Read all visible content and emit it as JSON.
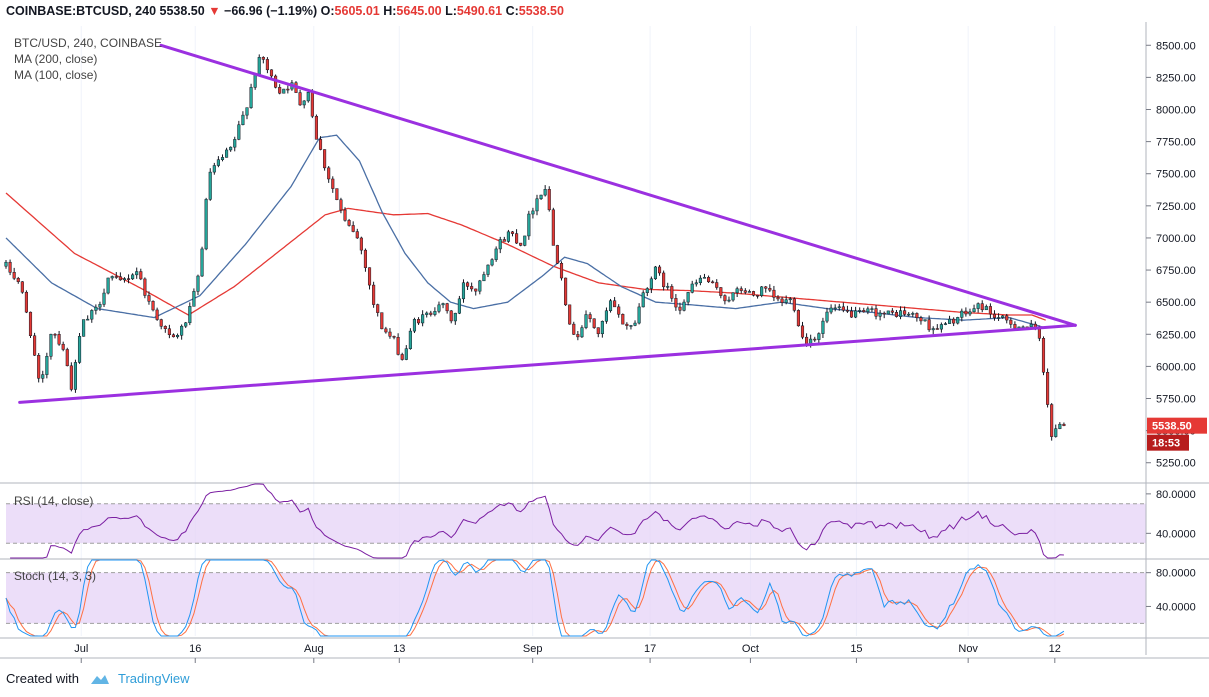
{
  "header": {
    "symbol": "COINBASE:BTCUSD, 240",
    "last": "5538.50",
    "arrow": "▼",
    "change": "−66.96 (−1.19%)",
    "o_label": "O:",
    "o": "5605.01",
    "h_label": "H:",
    "h": "5645.00",
    "l_label": "L:",
    "l": "5490.61",
    "c_label": "C:",
    "c": "5538.50"
  },
  "legend": {
    "main": "BTC/USD, 240, COINBASE",
    "ma200": "MA (200, close)",
    "ma100": "MA (100, close)",
    "rsi": "RSI (14, close)",
    "stoch": "Stoch (14, 3, 3)"
  },
  "price_tag": {
    "value": "5538.50",
    "timer": "18:53"
  },
  "footer": {
    "created": "Created with",
    "brand": "TradingView"
  },
  "colors": {
    "bull": "#26a69a",
    "bear": "#e53935",
    "candle": "#131722",
    "ma200": "#e53935",
    "ma100": "#4a6fa5",
    "trend": "#9b30e0",
    "osc": "#7b1fa2",
    "band": "#e6d3f7",
    "stoch_k": "#2196f3",
    "stoch_d": "#ff7043"
  },
  "chart_data": [
    {
      "type": "candlestick",
      "title": "BTC/USD, 240, COINBASE",
      "ylim": [
        5100,
        8650
      ],
      "yticks": [
        "8500.00",
        "8250.00",
        "8000.00",
        "7750.00",
        "7500.00",
        "7250.00",
        "7000.00",
        "6750.00",
        "6500.00",
        "6250.00",
        "6000.00",
        "5750.00",
        "5500.00",
        "5250.00"
      ],
      "ytick_values": [
        8500,
        8250,
        8000,
        7750,
        7500,
        7250,
        7000,
        6750,
        6500,
        6250,
        6000,
        5750,
        5500,
        5250
      ],
      "x_labels": [
        {
          "label": "Jul",
          "t": 0.066
        },
        {
          "label": "16",
          "t": 0.166
        },
        {
          "label": "Aug",
          "t": 0.27
        },
        {
          "label": "13",
          "t": 0.345
        },
        {
          "label": "Sep",
          "t": 0.462
        },
        {
          "label": "17",
          "t": 0.565
        },
        {
          "label": "Oct",
          "t": 0.653
        },
        {
          "label": "15",
          "t": 0.746
        },
        {
          "label": "Nov",
          "t": 0.844
        },
        {
          "label": "12",
          "t": 0.92
        }
      ],
      "price_anchors": [
        [
          0.0,
          6780
        ],
        [
          0.012,
          6650
        ],
        [
          0.022,
          6250
        ],
        [
          0.03,
          5800
        ],
        [
          0.04,
          6300
        ],
        [
          0.05,
          6150
        ],
        [
          0.058,
          5820
        ],
        [
          0.066,
          6320
        ],
        [
          0.08,
          6450
        ],
        [
          0.09,
          6700
        ],
        [
          0.1,
          6650
        ],
        [
          0.115,
          6750
        ],
        [
          0.125,
          6500
        ],
        [
          0.135,
          6350
        ],
        [
          0.145,
          6200
        ],
        [
          0.155,
          6300
        ],
        [
          0.162,
          6450
        ],
        [
          0.17,
          6750
        ],
        [
          0.178,
          7500
        ],
        [
          0.188,
          7600
        ],
        [
          0.198,
          7700
        ],
        [
          0.21,
          8000
        ],
        [
          0.22,
          8350
        ],
        [
          0.225,
          8400
        ],
        [
          0.232,
          8250
        ],
        [
          0.24,
          8150
        ],
        [
          0.25,
          8200
        ],
        [
          0.258,
          8050
        ],
        [
          0.265,
          8150
        ],
        [
          0.272,
          7800
        ],
        [
          0.28,
          7550
        ],
        [
          0.29,
          7300
        ],
        [
          0.298,
          7100
        ],
        [
          0.306,
          7050
        ],
        [
          0.314,
          6850
        ],
        [
          0.322,
          6500
        ],
        [
          0.33,
          6300
        ],
        [
          0.34,
          6200
        ],
        [
          0.348,
          6050
        ],
        [
          0.358,
          6350
        ],
        [
          0.37,
          6400
        ],
        [
          0.38,
          6500
        ],
        [
          0.392,
          6350
        ],
        [
          0.402,
          6650
        ],
        [
          0.412,
          6600
        ],
        [
          0.422,
          6800
        ],
        [
          0.432,
          6950
        ],
        [
          0.442,
          7050
        ],
        [
          0.452,
          6950
        ],
        [
          0.46,
          7200
        ],
        [
          0.468,
          7350
        ],
        [
          0.474,
          7400
        ],
        [
          0.48,
          6950
        ],
        [
          0.488,
          6700
        ],
        [
          0.494,
          6300
        ],
        [
          0.502,
          6250
        ],
        [
          0.51,
          6400
        ],
        [
          0.52,
          6250
        ],
        [
          0.53,
          6500
        ],
        [
          0.54,
          6350
        ],
        [
          0.55,
          6300
        ],
        [
          0.56,
          6600
        ],
        [
          0.57,
          6750
        ],
        [
          0.58,
          6600
        ],
        [
          0.59,
          6450
        ],
        [
          0.6,
          6600
        ],
        [
          0.612,
          6700
        ],
        [
          0.622,
          6600
        ],
        [
          0.632,
          6520
        ],
        [
          0.645,
          6600
        ],
        [
          0.655,
          6550
        ],
        [
          0.665,
          6600
        ],
        [
          0.678,
          6500
        ],
        [
          0.69,
          6520
        ],
        [
          0.7,
          6180
        ],
        [
          0.712,
          6250
        ],
        [
          0.722,
          6450
        ],
        [
          0.735,
          6420
        ],
        [
          0.748,
          6400
        ],
        [
          0.76,
          6430
        ],
        [
          0.772,
          6400
        ],
        [
          0.785,
          6420
        ],
        [
          0.8,
          6380
        ],
        [
          0.812,
          6300
        ],
        [
          0.822,
          6310
        ],
        [
          0.832,
          6370
        ],
        [
          0.844,
          6420
        ],
        [
          0.855,
          6480
        ],
        [
          0.866,
          6400
        ],
        [
          0.876,
          6350
        ],
        [
          0.888,
          6320
        ],
        [
          0.9,
          6300
        ],
        [
          0.906,
          6250
        ],
        [
          0.912,
          5850
        ],
        [
          0.918,
          5400
        ],
        [
          0.924,
          5580
        ],
        [
          0.928,
          5538
        ]
      ],
      "trendlines": [
        {
          "name": "upper",
          "from": [
            0.136,
            8500
          ],
          "to": [
            0.938,
            6320
          ]
        },
        {
          "name": "lower",
          "from": [
            0.012,
            5720
          ],
          "to": [
            0.938,
            6320
          ]
        }
      ],
      "ma200_anchors": [
        [
          0.0,
          7350
        ],
        [
          0.06,
          6880
        ],
        [
          0.12,
          6600
        ],
        [
          0.16,
          6400
        ],
        [
          0.2,
          6620
        ],
        [
          0.24,
          6900
        ],
        [
          0.28,
          7180
        ],
        [
          0.3,
          7230
        ],
        [
          0.34,
          7180
        ],
        [
          0.37,
          7190
        ],
        [
          0.4,
          7100
        ],
        [
          0.44,
          6950
        ],
        [
          0.48,
          6780
        ],
        [
          0.52,
          6650
        ],
        [
          0.56,
          6600
        ],
        [
          0.6,
          6590
        ],
        [
          0.64,
          6570
        ],
        [
          0.68,
          6540
        ],
        [
          0.72,
          6510
        ],
        [
          0.76,
          6480
        ],
        [
          0.8,
          6450
        ],
        [
          0.84,
          6420
        ],
        [
          0.88,
          6400
        ],
        [
          0.9,
          6400
        ],
        [
          0.912,
          6360
        ]
      ],
      "ma100_anchors": [
        [
          0.0,
          7000
        ],
        [
          0.04,
          6650
        ],
        [
          0.08,
          6450
        ],
        [
          0.13,
          6380
        ],
        [
          0.17,
          6550
        ],
        [
          0.21,
          6950
        ],
        [
          0.25,
          7400
        ],
        [
          0.275,
          7780
        ],
        [
          0.29,
          7800
        ],
        [
          0.31,
          7600
        ],
        [
          0.33,
          7200
        ],
        [
          0.35,
          6880
        ],
        [
          0.37,
          6650
        ],
        [
          0.39,
          6500
        ],
        [
          0.41,
          6450
        ],
        [
          0.44,
          6500
        ],
        [
          0.47,
          6700
        ],
        [
          0.49,
          6850
        ],
        [
          0.51,
          6800
        ],
        [
          0.54,
          6620
        ],
        [
          0.57,
          6500
        ],
        [
          0.6,
          6480
        ],
        [
          0.64,
          6450
        ],
        [
          0.68,
          6500
        ],
        [
          0.72,
          6450
        ],
        [
          0.76,
          6420
        ],
        [
          0.8,
          6380
        ],
        [
          0.84,
          6360
        ],
        [
          0.88,
          6380
        ],
        [
          0.912,
          6300
        ]
      ],
      "last_price": 5538.5
    },
    {
      "type": "line",
      "title": "RSI (14, close)",
      "ylim": [
        15,
        90
      ],
      "yticks": [
        "80.0000",
        "40.0000"
      ],
      "ytick_values": [
        80,
        40
      ],
      "band": [
        30,
        70
      ]
    },
    {
      "type": "line",
      "title": "Stoch (14, 3, 3)",
      "ylim": [
        5,
        95
      ],
      "yticks": [
        "80.0000",
        "40.0000"
      ],
      "ytick_values": [
        80,
        40
      ],
      "band": [
        20,
        80
      ]
    }
  ]
}
